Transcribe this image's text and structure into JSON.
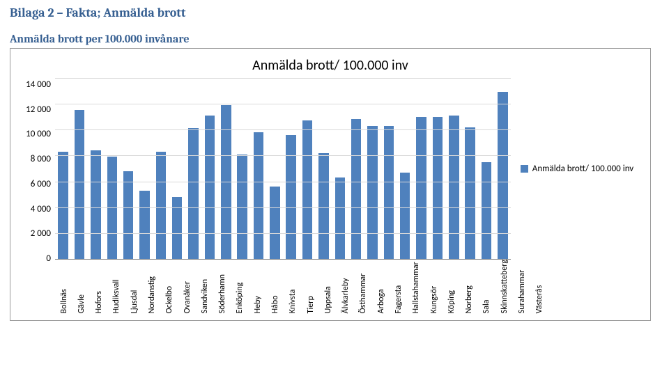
{
  "heading": "Bilaga 2 – Fakta; Anmälda brott",
  "subheading": "Anmälda brott per 100.000 invånare",
  "chart": {
    "type": "bar",
    "title": "Anmälda brott/ 100.000 inv",
    "legend_label": "Anmälda brott/ 100.000 inv",
    "categories": [
      "Bollnäs",
      "Gävle",
      "Hofors",
      "Hudiksvall",
      "Ljusdal",
      "Nordanstig",
      "Ockelbo",
      "Ovanåker",
      "Sandviken",
      "Söderhamn",
      "Enköping",
      "Heby",
      "Håbo",
      "Knivsta",
      "Tierp",
      "Uppsala",
      "Älvkarleby",
      "Östhammar",
      "Arboga",
      "Fagersta",
      "Hallstahammar",
      "Kungsör",
      "Köping",
      "Norberg",
      "Sala",
      "Skinnskatteberg",
      "Surahammar",
      "Västerås"
    ],
    "values": [
      8300,
      11500,
      8400,
      7900,
      6800,
      5300,
      8300,
      4800,
      10100,
      11100,
      11900,
      8100,
      9800,
      5600,
      9600,
      10700,
      8200,
      6300,
      10800,
      10300,
      10300,
      6700,
      11000,
      11000,
      11100,
      10200,
      7500,
      12900
    ],
    "y_ticks": [
      "14 000",
      "12 000",
      "10 000",
      "8 000",
      "6 000",
      "4 000",
      "2 000",
      "0"
    ],
    "ymax": 14000,
    "bar_color": "#4f81bd",
    "grid_color": "#d9d9d9",
    "background_color": "#ffffff",
    "title_fontsize": 20,
    "axis_fontsize": 13,
    "xlabel_fontsize": 12
  }
}
